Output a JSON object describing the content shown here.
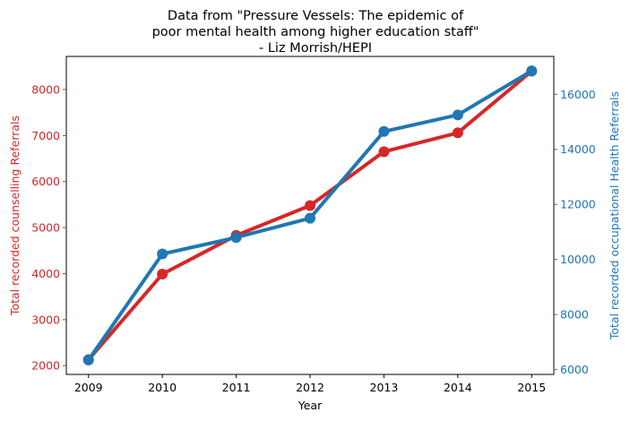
{
  "chart_data": {
    "type": "line",
    "title": [
      "Data from \"Pressure Vessels: The epidemic of",
      "poor mental health among higher education staff\"",
      "- Liz Morrish/HEPI"
    ],
    "xlabel": "Year",
    "x": [
      2009,
      2010,
      2011,
      2012,
      2013,
      2014,
      2015
    ],
    "xlim": [
      2008.7,
      2015.3
    ],
    "series": [
      {
        "name": "Total recorded counselling Referrals",
        "axis": "left",
        "color": "#d62728",
        "values": [
          2130,
          3990,
          4830,
          5480,
          6650,
          7060,
          8400
        ]
      },
      {
        "name": "Total recorded occupational Health Referrals",
        "axis": "right",
        "color": "#1f77b4",
        "values": [
          6350,
          10200,
          10800,
          11500,
          14650,
          15250,
          16850
        ]
      }
    ],
    "y_left": {
      "label": "Total recorded counselling Referrals",
      "color": "#d62728",
      "lim": [
        1810,
        8720
      ],
      "ticks": [
        2000,
        3000,
        4000,
        5000,
        6000,
        7000,
        8000
      ]
    },
    "y_right": {
      "label": "Total recorded occupational Health Referrals",
      "color": "#1f77b4",
      "lim": [
        5825,
        17375
      ],
      "ticks": [
        6000,
        8000,
        10000,
        12000,
        14000,
        16000
      ]
    },
    "grid": false,
    "legend": "none"
  }
}
